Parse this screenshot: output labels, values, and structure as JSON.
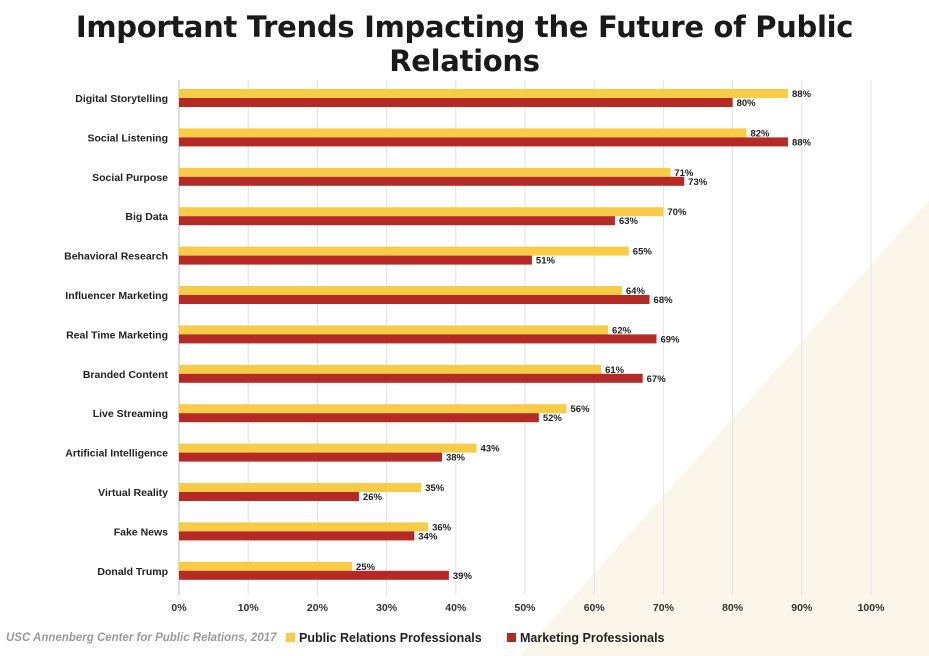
{
  "colors": {
    "pr": "#f9cc48",
    "mkt": "#b62a26",
    "grid": "#e2e2e2",
    "deco": "#fbf6ea"
  },
  "chart_data": {
    "type": "bar",
    "orientation": "horizontal",
    "title": "Important Trends Impacting the Future of Public Relations",
    "categories": [
      "Digital Storytelling",
      "Social Listening",
      "Social Purpose",
      "Big Data",
      "Behavioral Research",
      "Influencer Marketing",
      "Real Time Marketing",
      "Branded Content",
      "Live Streaming",
      "Artificial Intelligence",
      "Virtual Reality",
      "Fake News",
      "Donald Trump"
    ],
    "series": [
      {
        "name": "Public Relations Professionals",
        "values": [
          88,
          82,
          71,
          70,
          65,
          64,
          62,
          61,
          56,
          43,
          35,
          36,
          25
        ]
      },
      {
        "name": "Marketing Professionals",
        "values": [
          80,
          88,
          73,
          63,
          51,
          68,
          69,
          67,
          52,
          38,
          26,
          34,
          39
        ]
      }
    ],
    "x_ticks": [
      "0%",
      "10%",
      "20%",
      "30%",
      "40%",
      "50%",
      "60%",
      "70%",
      "80%",
      "90%",
      "100%"
    ],
    "xlim": [
      0,
      100
    ],
    "grid": true,
    "legend": "bottom"
  },
  "source": "USC Annenberg Center for Public Relations, 2017"
}
